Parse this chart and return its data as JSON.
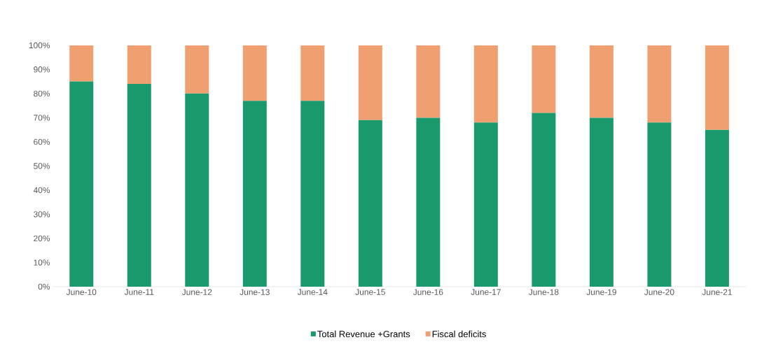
{
  "chart_data": {
    "type": "bar",
    "stacked": true,
    "categories": [
      "June-10",
      "June-11",
      "June-12",
      "June-13",
      "June-14",
      "June-15",
      "June-16",
      "June-17",
      "June-18",
      "June-19",
      "June-20",
      "June-21"
    ],
    "series": [
      {
        "name": "Total Revenue +Grants",
        "color": "#1a9a6c",
        "values": [
          85,
          84,
          80,
          77,
          77,
          69,
          70,
          68,
          72,
          70,
          68,
          65
        ]
      },
      {
        "name": "Fiscal deficits",
        "color": "#f0a070",
        "values": [
          15,
          16,
          20,
          23,
          23,
          31,
          30,
          32,
          28,
          30,
          32,
          35
        ]
      }
    ],
    "ylim": [
      0,
      100
    ],
    "yticks": [
      {
        "value": 0,
        "label": "0%"
      },
      {
        "value": 10,
        "label": "10%"
      },
      {
        "value": 20,
        "label": "20%"
      },
      {
        "value": 30,
        "label": "30%"
      },
      {
        "value": 40,
        "label": "40%"
      },
      {
        "value": 50,
        "label": "50%"
      },
      {
        "value": 60,
        "label": "60%"
      },
      {
        "value": 70,
        "label": "70%"
      },
      {
        "value": 80,
        "label": "80%"
      },
      {
        "value": 90,
        "label": "90%"
      },
      {
        "value": 100,
        "label": "100%"
      }
    ],
    "legend": "bottom"
  }
}
